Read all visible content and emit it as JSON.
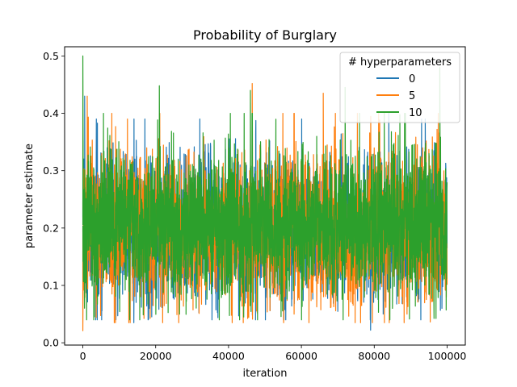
{
  "chart_data": {
    "type": "line",
    "title": "Probability of Burglary",
    "xlabel": "iteration",
    "ylabel": "parameter estimate",
    "xlim": [
      -5000,
      105000
    ],
    "ylim": [
      -0.004,
      0.516
    ],
    "xticks": [
      0,
      20000,
      40000,
      60000,
      80000,
      100000
    ],
    "xtick_labels": [
      "0",
      "20000",
      "40000",
      "60000",
      "80000",
      "100000"
    ],
    "yticks": [
      0.0,
      0.1,
      0.2,
      0.3,
      0.4,
      0.5
    ],
    "ytick_labels": [
      "0.0",
      "0.1",
      "0.2",
      "0.3",
      "0.4",
      "0.5"
    ],
    "grid": false,
    "legend": {
      "title": "# hyperparameters",
      "placement": "top-right"
    },
    "series": [
      {
        "name": "0",
        "color": "#1f77b4",
        "x_range": [
          0,
          100000
        ],
        "center": 0.2,
        "band": [
          0.07,
          0.33
        ],
        "extremes": [
          {
            "x": 500,
            "y": 0.43
          },
          {
            "x": 14000,
            "y": 0.035
          },
          {
            "x": 79000,
            "y": 0.022
          },
          {
            "x": 84000,
            "y": 0.4
          },
          {
            "x": 94000,
            "y": 0.39
          }
        ]
      },
      {
        "name": "5",
        "color": "#ff7f0e",
        "x_range": [
          0,
          100000
        ],
        "center": 0.2,
        "band": [
          0.065,
          0.34
        ],
        "extremes": [
          {
            "x": 0,
            "y": 0.021
          },
          {
            "x": 1200,
            "y": 0.43
          },
          {
            "x": 46500,
            "y": 0.452
          },
          {
            "x": 66000,
            "y": 0.435
          },
          {
            "x": 58000,
            "y": 0.05
          },
          {
            "x": 89000,
            "y": 0.05
          }
        ]
      },
      {
        "name": "10",
        "color": "#2ca02c",
        "x_range": [
          0,
          100000
        ],
        "center": 0.205,
        "band": [
          0.07,
          0.34
        ],
        "extremes": [
          {
            "x": 0,
            "y": 0.5
          },
          {
            "x": 21000,
            "y": 0.448
          },
          {
            "x": 46000,
            "y": 0.44
          },
          {
            "x": 72000,
            "y": 0.445
          },
          {
            "x": 98000,
            "y": 0.48
          },
          {
            "x": 85000,
            "y": 0.06
          }
        ]
      }
    ]
  }
}
